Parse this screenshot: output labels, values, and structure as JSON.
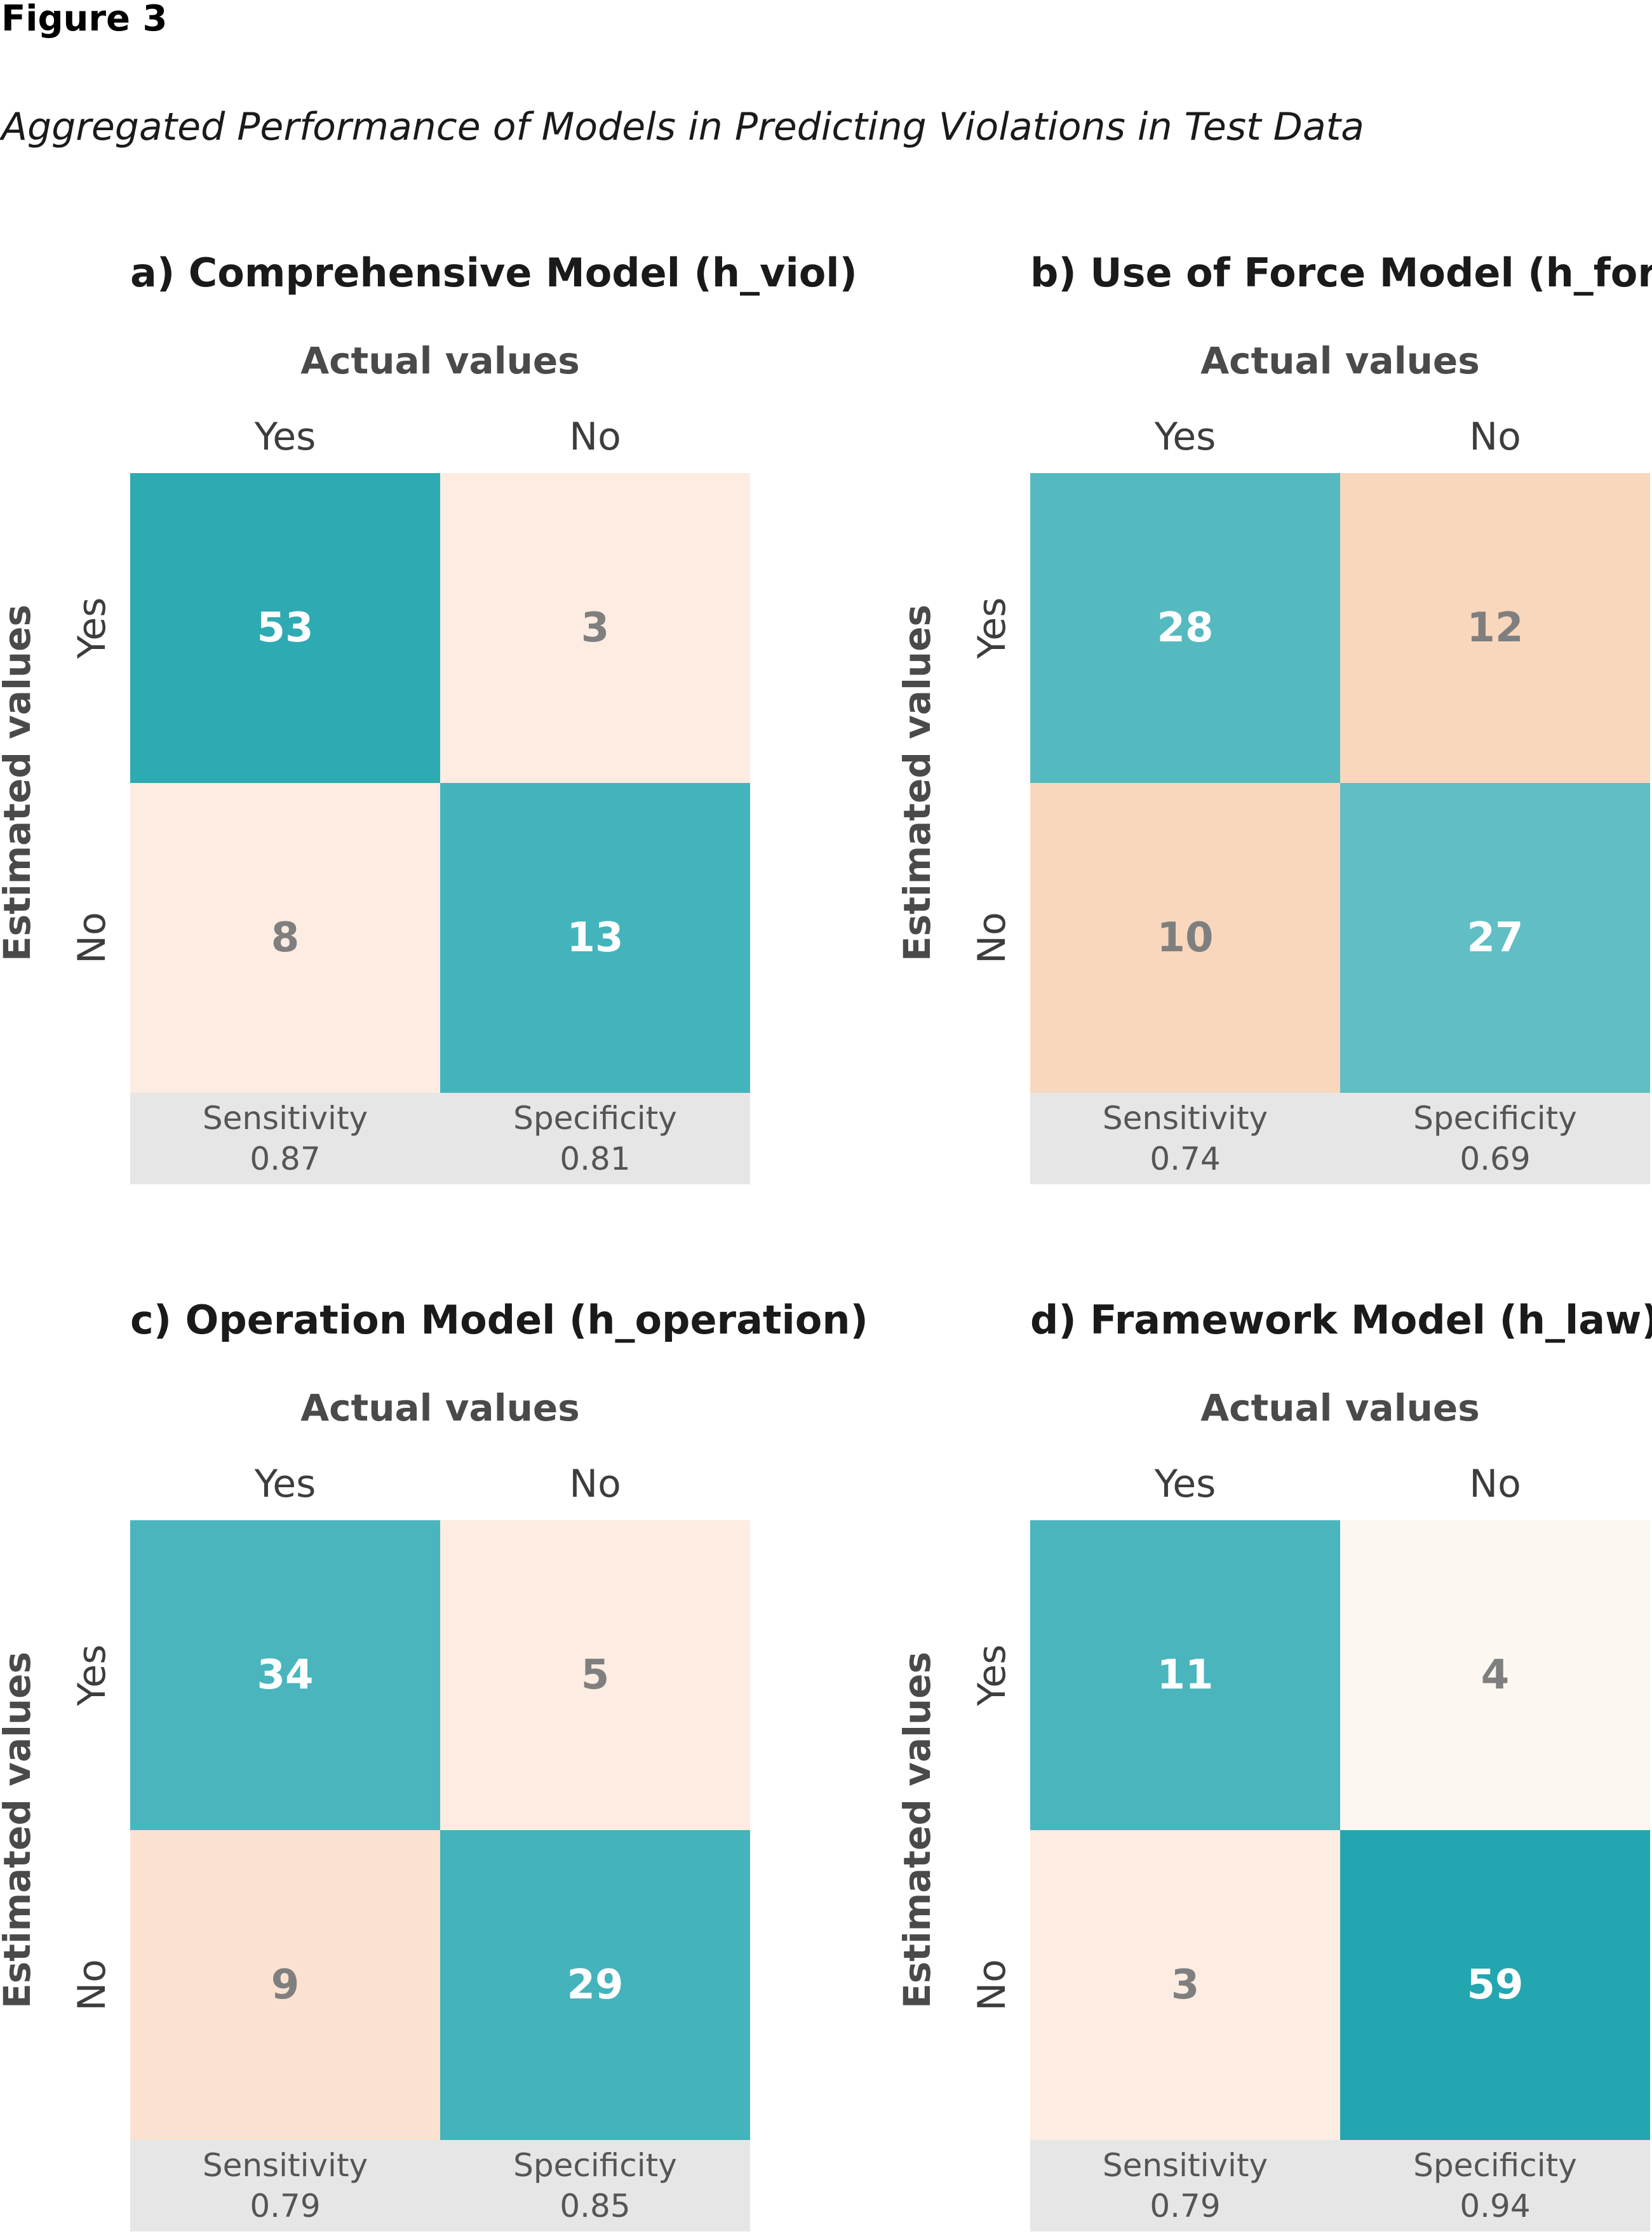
{
  "figure": {
    "label": "Figure 3",
    "caption": "Aggregated Performance of Models in Predicting Violations in Test Data"
  },
  "colors": {
    "teal_dark": "#23a6af",
    "teal_light": "#60bec4",
    "peach_strong": "#f9d7bc",
    "peach_light": "#fcece1",
    "peach_faint": "#fdf7f2",
    "value_light": "#ffffff",
    "value_dark": "#7f7f7f",
    "metric_bg": "#e6e6e6"
  },
  "chart_data": [
    {
      "type": "heatmap",
      "title": "a) Comprehensive Model (h_viol)",
      "xlabel": "Actual values",
      "ylabel": "Estimated values",
      "x_categories": [
        "Yes",
        "No"
      ],
      "y_categories": [
        "Yes",
        "No"
      ],
      "matrix": [
        [
          53,
          3
        ],
        [
          8,
          13
        ]
      ],
      "metrics": [
        {
          "name": "Sensitivity",
          "value": "0.87"
        },
        {
          "name": "Specificity",
          "value": "0.81"
        }
      ]
    },
    {
      "type": "heatmap",
      "title": "b) Use of Force Model (h_force)",
      "xlabel": "Actual values",
      "ylabel": "Estimated values",
      "x_categories": [
        "Yes",
        "No"
      ],
      "y_categories": [
        "Yes",
        "No"
      ],
      "matrix": [
        [
          28,
          12
        ],
        [
          10,
          27
        ]
      ],
      "metrics": [
        {
          "name": "Sensitivity",
          "value": "0.74"
        },
        {
          "name": "Specificity",
          "value": "0.69"
        }
      ]
    },
    {
      "type": "heatmap",
      "title": "c) Operation Model (h_operation)",
      "xlabel": "Actual values",
      "ylabel": "Estimated values",
      "x_categories": [
        "Yes",
        "No"
      ],
      "y_categories": [
        "Yes",
        "No"
      ],
      "matrix": [
        [
          34,
          5
        ],
        [
          9,
          29
        ]
      ],
      "metrics": [
        {
          "name": "Sensitivity",
          "value": "0.79"
        },
        {
          "name": "Specificity",
          "value": "0.85"
        }
      ]
    },
    {
      "type": "heatmap",
      "title": "d) Framework Model (h_law)",
      "xlabel": "Actual values",
      "ylabel": "Estimated values",
      "x_categories": [
        "Yes",
        "No"
      ],
      "y_categories": [
        "Yes",
        "No"
      ],
      "matrix": [
        [
          11,
          4
        ],
        [
          3,
          59
        ]
      ],
      "metrics": [
        {
          "name": "Sensitivity",
          "value": "0.79"
        },
        {
          "name": "Specificity",
          "value": "0.94"
        }
      ]
    }
  ]
}
